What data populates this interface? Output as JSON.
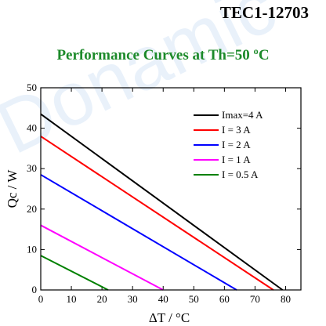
{
  "header": {
    "product": "TEC1-12703",
    "watermark": "Donamic"
  },
  "chart_data": {
    "type": "line",
    "title": "Performance Curves at Th=50 ºC",
    "xlabel": "ΔT / °C",
    "ylabel": "Qc / W",
    "xlim": [
      0,
      85
    ],
    "ylim": [
      0,
      50
    ],
    "xticks": [
      0,
      10,
      20,
      30,
      40,
      50,
      60,
      70,
      80
    ],
    "yticks": [
      0,
      10,
      20,
      30,
      40,
      50
    ],
    "legend_position": "top-right",
    "series": [
      {
        "name": "Imax=4  A",
        "color": "#000000",
        "x": [
          0,
          79
        ],
        "y": [
          43.5,
          0
        ]
      },
      {
        "name": "I = 3  A",
        "color": "#ff0000",
        "x": [
          0,
          76
        ],
        "y": [
          38,
          0
        ]
      },
      {
        "name": "I = 2  A",
        "color": "#0000ff",
        "x": [
          0,
          64
        ],
        "y": [
          28.5,
          0
        ]
      },
      {
        "name": "I = 1  A",
        "color": "#ff00ff",
        "x": [
          0,
          40
        ],
        "y": [
          16,
          0
        ]
      },
      {
        "name": "I = 0.5  A",
        "color": "#008000",
        "x": [
          0,
          22
        ],
        "y": [
          8.5,
          0
        ]
      }
    ]
  }
}
